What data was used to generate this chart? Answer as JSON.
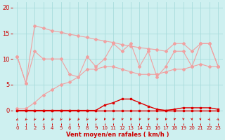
{
  "x": [
    0,
    1,
    2,
    3,
    4,
    5,
    6,
    7,
    8,
    9,
    10,
    11,
    12,
    13,
    14,
    15,
    16,
    17,
    18,
    19,
    20,
    21,
    22,
    23
  ],
  "line_upper": [
    10.5,
    5.3,
    16.5,
    16.0,
    15.5,
    15.2,
    14.8,
    14.5,
    14.2,
    13.8,
    13.5,
    13.2,
    12.8,
    12.5,
    12.2,
    12.0,
    11.8,
    11.5,
    13.0,
    13.0,
    11.5,
    13.0,
    13.0,
    8.5
  ],
  "line_mid": [
    10.5,
    5.3,
    11.5,
    10.0,
    10.0,
    10.0,
    7.0,
    6.5,
    10.5,
    8.5,
    10.0,
    13.0,
    11.5,
    13.0,
    8.5,
    11.5,
    6.5,
    8.5,
    11.5,
    11.5,
    8.5,
    13.0,
    13.0,
    8.5
  ],
  "line_lower": [
    0.3,
    0.3,
    1.5,
    3.0,
    4.0,
    5.0,
    5.5,
    6.5,
    8.0,
    8.0,
    8.5,
    8.5,
    8.0,
    7.5,
    7.0,
    7.0,
    7.0,
    7.5,
    8.0,
    8.0,
    8.5,
    9.0,
    8.5,
    8.5
  ],
  "line_red_flat": [
    0,
    0,
    0,
    0,
    0,
    0,
    0,
    0,
    0,
    0,
    0,
    0,
    0,
    0,
    0,
    0,
    0,
    0,
    0,
    0,
    0,
    0,
    0,
    0
  ],
  "line_red_bump": [
    0,
    0,
    0,
    0,
    0,
    0,
    0,
    0,
    0,
    0,
    1.0,
    1.5,
    2.2,
    2.2,
    1.5,
    0.8,
    0.2,
    0,
    0.2,
    0.5,
    0.5,
    0.5,
    0.5,
    0.2
  ],
  "bg_color": "#cef0f0",
  "grid_color": "#a8dcdc",
  "line_color_light": "#f0a0a0",
  "line_color_red": "#dd0000",
  "tick_color": "#cc0000",
  "xlabel": "Vent moyen/en rafales ( km/h )",
  "xlabel_color": "#cc0000",
  "yticks": [
    0,
    5,
    10,
    15,
    20
  ],
  "xticks": [
    0,
    1,
    2,
    3,
    4,
    5,
    6,
    7,
    8,
    9,
    10,
    11,
    12,
    13,
    14,
    15,
    16,
    17,
    18,
    19,
    20,
    21,
    22,
    23
  ],
  "ylim": [
    -2.5,
    21
  ],
  "xlim": [
    -0.5,
    23.5
  ],
  "arrow_angles_deg": [
    230,
    210,
    200,
    200,
    200,
    200,
    200,
    200,
    200,
    200,
    195,
    195,
    195,
    195,
    195,
    195,
    195,
    195,
    190,
    185,
    175,
    165,
    155,
    145
  ]
}
